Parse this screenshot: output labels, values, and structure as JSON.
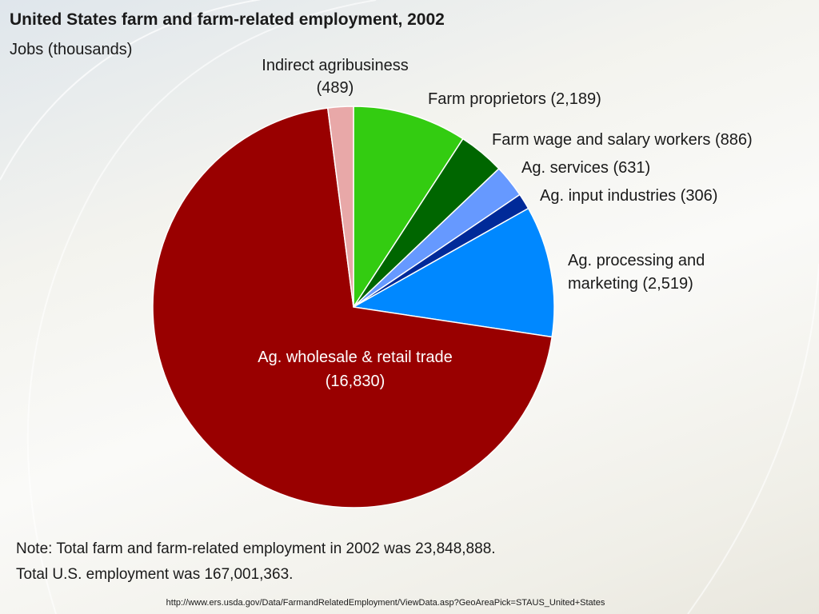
{
  "chart_data": {
    "type": "pie",
    "title": "United States farm and farm-related employment, 2002",
    "subtitle": "Jobs (thousands)",
    "slices": [
      {
        "label": "Farm proprietors",
        "value_text": "(2,189)",
        "value": 2189,
        "color": "#33cc11"
      },
      {
        "label": "Farm wage and salary workers",
        "value_text": "(886)",
        "value": 886,
        "color": "#006600"
      },
      {
        "label": "Ag. services",
        "value_text": "(631)",
        "value": 631,
        "color": "#6699ff"
      },
      {
        "label": "Ag. input industries",
        "value_text": "(306)",
        "value": 306,
        "color": "#002a99"
      },
      {
        "label": "Ag. processing and marketing",
        "value_text": "(2,519)",
        "value": 2519,
        "color": "#0088ff",
        "label_lines": [
          "Ag. processing and",
          "marketing (2,519)"
        ]
      },
      {
        "label": "Ag. wholesale & retail trade",
        "value_text": "(16,830)",
        "value": 16830,
        "color": "#990000",
        "label_lines": [
          "Ag. wholesale & retail trade",
          "(16,830)"
        ]
      },
      {
        "label": "Indirect agribusiness",
        "value_text": "(489)",
        "value": 489,
        "color": "#e8a8a8",
        "label_lines": [
          "Indirect agribusiness",
          "(489)"
        ]
      }
    ]
  },
  "note": {
    "line1": "Note: Total farm and farm-related employment in 2002 was 23,848,888.",
    "line2": "Total U.S. employment was 167,001,363."
  },
  "source_url": "http://www.ers.usda.gov/Data/FarmandRelatedEmployment/ViewData.asp?GeoAreaPick=STAUS_United+States"
}
